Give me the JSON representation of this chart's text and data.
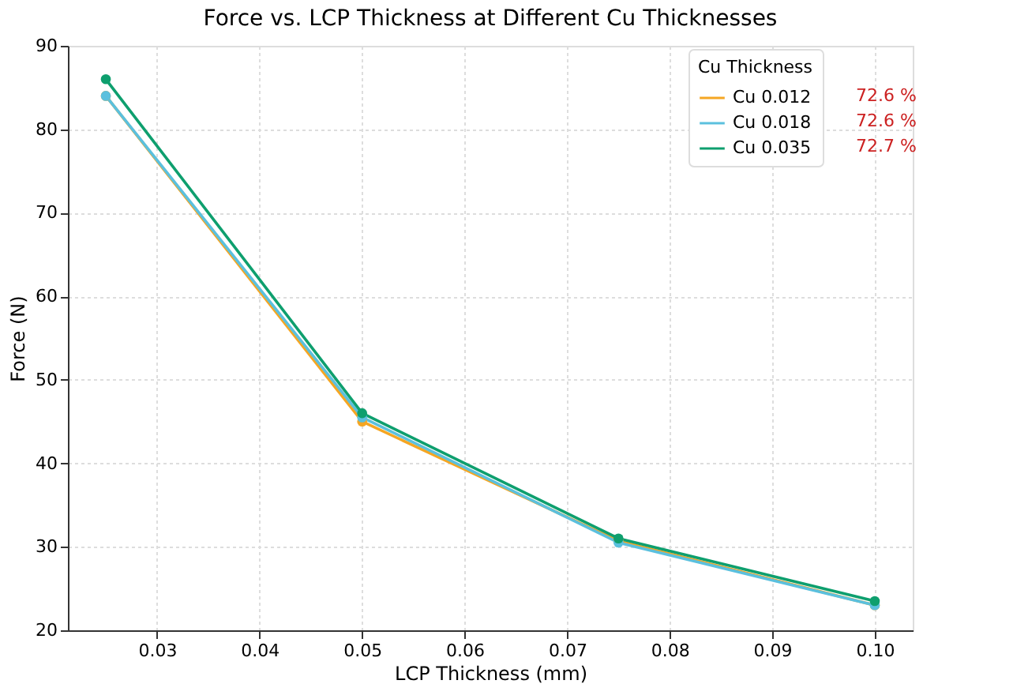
{
  "chart_data": {
    "type": "line",
    "title": "Force vs. LCP Thickness at Different Cu Thicknesses",
    "xlabel": "LCP Thickness (mm)",
    "ylabel": "Force (N)",
    "legend_title": "Cu Thickness",
    "x": [
      0.025,
      0.05,
      0.075,
      0.1
    ],
    "series": [
      {
        "name": "Cu 0.012",
        "color": "#f5a623",
        "values": [
          84,
          45,
          30.7,
          23
        ]
      },
      {
        "name": "Cu 0.018",
        "color": "#5bc0de",
        "values": [
          84,
          45.5,
          30.5,
          23
        ]
      },
      {
        "name": "Cu 0.035",
        "color": "#0e9f6e",
        "values": [
          86,
          46,
          31,
          23.5
        ]
      }
    ],
    "xlim": [
      0.0213,
      0.1037
    ],
    "xticks": [
      0.03,
      0.04,
      0.05,
      0.06,
      0.07,
      0.08,
      0.09,
      {
        "value": 0.1,
        "label": "0.10"
      }
    ],
    "ylim": [
      20,
      90
    ],
    "yticks": [
      20,
      30,
      40,
      50,
      60,
      70,
      80,
      90
    ],
    "annotations": [
      "72.6 %",
      "72.6 %",
      "72.7 %"
    ],
    "grid": true,
    "legend": "top right",
    "marker": "circle",
    "line_style": "solid"
  }
}
